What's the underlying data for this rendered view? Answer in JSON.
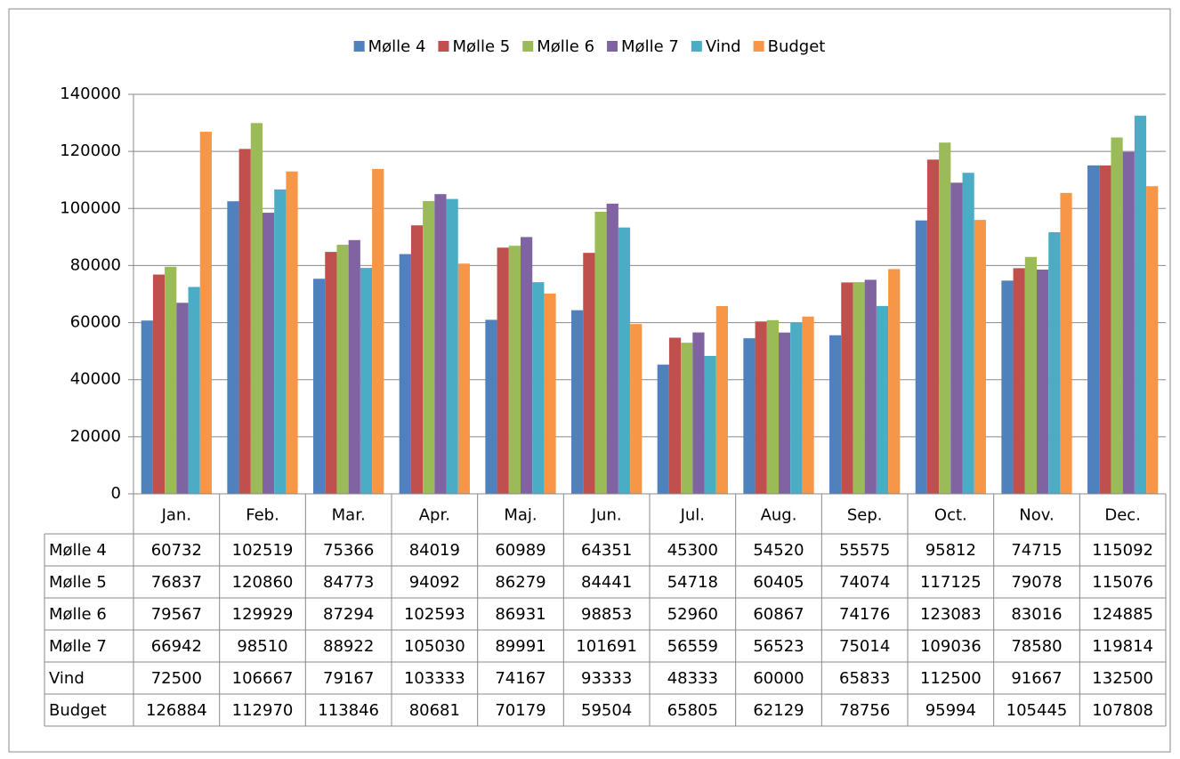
{
  "chart_data": {
    "type": "bar",
    "categories": [
      "Jan.",
      "Feb.",
      "Mar.",
      "Apr.",
      "Maj.",
      "Jun.",
      "Jul.",
      "Aug.",
      "Sep.",
      "Oct.",
      "Nov.",
      "Dec."
    ],
    "series": [
      {
        "name": "Mølle 4",
        "color": "#4F81BD",
        "values": [
          60732,
          102519,
          75366,
          84019,
          60989,
          64351,
          45300,
          54520,
          55575,
          95812,
          74715,
          115092
        ]
      },
      {
        "name": "Mølle 5",
        "color": "#C0504D",
        "values": [
          76837,
          120860,
          84773,
          94092,
          86279,
          84441,
          54718,
          60405,
          74074,
          117125,
          79078,
          115076
        ]
      },
      {
        "name": "Mølle 6",
        "color": "#9BBB59",
        "values": [
          79567,
          129929,
          87294,
          102593,
          86931,
          98853,
          52960,
          60867,
          74176,
          123083,
          83016,
          124885
        ]
      },
      {
        "name": "Mølle 7",
        "color": "#8064A2",
        "values": [
          66942,
          98510,
          88922,
          105030,
          89991,
          101691,
          56559,
          56523,
          75014,
          109036,
          78580,
          119814
        ]
      },
      {
        "name": "Vind",
        "color": "#4BACC6",
        "values": [
          72500,
          106667,
          79167,
          103333,
          74167,
          93333,
          48333,
          60000,
          65833,
          112500,
          91667,
          132500
        ]
      },
      {
        "name": "Budget",
        "color": "#F79646",
        "values": [
          126884,
          112970,
          113846,
          80681,
          70179,
          59504,
          65805,
          62129,
          78756,
          95994,
          105445,
          107808
        ]
      }
    ],
    "ylim": [
      0,
      140000
    ],
    "yticks": [
      0,
      20000,
      40000,
      60000,
      80000,
      100000,
      120000,
      140000
    ],
    "grid": true,
    "legend": "top",
    "data_table": true
  }
}
